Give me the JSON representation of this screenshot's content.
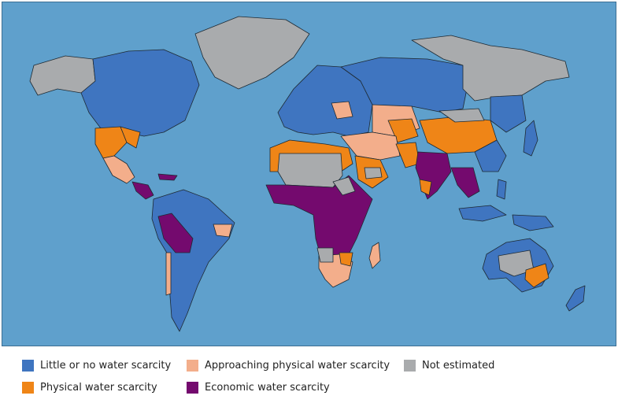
{
  "colors": {
    "ocean": "#5fa0cc",
    "little": "#3f75c0",
    "approaching": "#f3ae8b",
    "physical": "#ef8517",
    "economic": "#740a6e",
    "not_estimated": "#a9abad"
  },
  "legend": [
    {
      "key": "little",
      "label": "Little or no water scarcity"
    },
    {
      "key": "approaching",
      "label": "Approaching physical water scarcity"
    },
    {
      "key": "not_estimated",
      "label": "Not estimated"
    },
    {
      "key": "physical",
      "label": "Physical water scarcity"
    },
    {
      "key": "economic",
      "label": "Economic water scarcity"
    }
  ]
}
